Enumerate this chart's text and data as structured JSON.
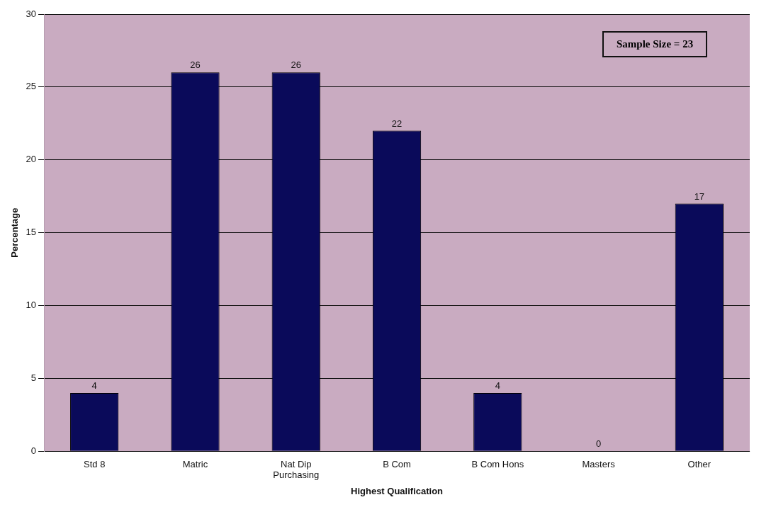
{
  "chart_data": {
    "type": "bar",
    "xlabel": "Highest Qualification",
    "ylabel": "Percentage",
    "categories": [
      "Std 8",
      "Matric",
      "Nat Dip Purchasing",
      "B Com",
      "B Com Hons",
      "Masters",
      "Other"
    ],
    "values": [
      4,
      26,
      26,
      22,
      4,
      0,
      17
    ],
    "color": "#0a0a5a",
    "ylim": [
      0,
      30
    ],
    "yticks": [
      0,
      5,
      10,
      15,
      20,
      25,
      30
    ],
    "grid": "y",
    "data_labels": true,
    "annotations": [
      "Sample Size = 23"
    ]
  }
}
